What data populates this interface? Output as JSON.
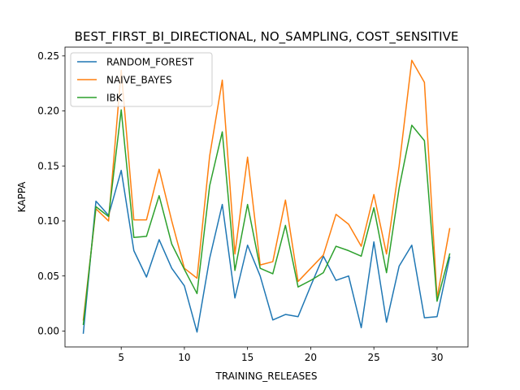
{
  "chart_data": {
    "type": "line",
    "title": "BEST_FIRST_BI_DIRECTIONAL, NO_SAMPLING, COST_SENSITIVE",
    "xlabel": "TRAINING_RELEASES",
    "ylabel": "KAPPA",
    "xlim": [
      0.55,
      32.45
    ],
    "ylim": [
      -0.0145,
      0.258
    ],
    "xticks": [
      5,
      10,
      15,
      20,
      25,
      30
    ],
    "xtick_labels": [
      "5",
      "10",
      "15",
      "20",
      "25",
      "30"
    ],
    "yticks": [
      0.0,
      0.05,
      0.1,
      0.15,
      0.2,
      0.25
    ],
    "ytick_labels": [
      "0.00",
      "0.05",
      "0.10",
      "0.15",
      "0.20",
      "0.25"
    ],
    "grid": false,
    "legend_position": "top-left",
    "x": [
      2,
      3,
      4,
      5,
      6,
      7,
      8,
      9,
      10,
      11,
      12,
      13,
      14,
      15,
      16,
      17,
      18,
      19,
      20,
      21,
      22,
      23,
      24,
      25,
      26,
      27,
      28,
      29,
      30,
      31
    ],
    "series": [
      {
        "name": "RANDOM_FOREST",
        "color": "#1f77b4",
        "values": [
          -0.002,
          0.118,
          0.105,
          0.146,
          0.073,
          0.049,
          0.083,
          0.057,
          0.041,
          -0.001,
          0.066,
          0.115,
          0.03,
          0.078,
          0.05,
          0.01,
          0.015,
          0.013,
          0.041,
          0.068,
          0.046,
          0.05,
          0.003,
          0.081,
          0.008,
          0.059,
          0.078,
          0.012,
          0.013,
          0.067
        ]
      },
      {
        "name": "NAIVE_BAYES",
        "color": "#ff7f0e",
        "values": [
          0.01,
          0.111,
          0.1,
          0.237,
          0.101,
          0.101,
          0.147,
          0.1,
          0.057,
          0.048,
          0.159,
          0.228,
          0.07,
          0.158,
          0.06,
          0.063,
          0.119,
          0.045,
          0.057,
          0.069,
          0.106,
          0.097,
          0.077,
          0.124,
          0.07,
          0.15,
          0.246,
          0.226,
          0.03,
          0.093
        ]
      },
      {
        "name": "IBK",
        "color": "#2ca02c",
        "values": [
          0.006,
          0.113,
          0.104,
          0.201,
          0.085,
          0.086,
          0.123,
          0.079,
          0.056,
          0.034,
          0.132,
          0.181,
          0.055,
          0.115,
          0.057,
          0.052,
          0.096,
          0.04,
          0.046,
          0.053,
          0.077,
          0.073,
          0.068,
          0.112,
          0.053,
          0.13,
          0.187,
          0.173,
          0.027,
          0.07
        ]
      }
    ]
  }
}
